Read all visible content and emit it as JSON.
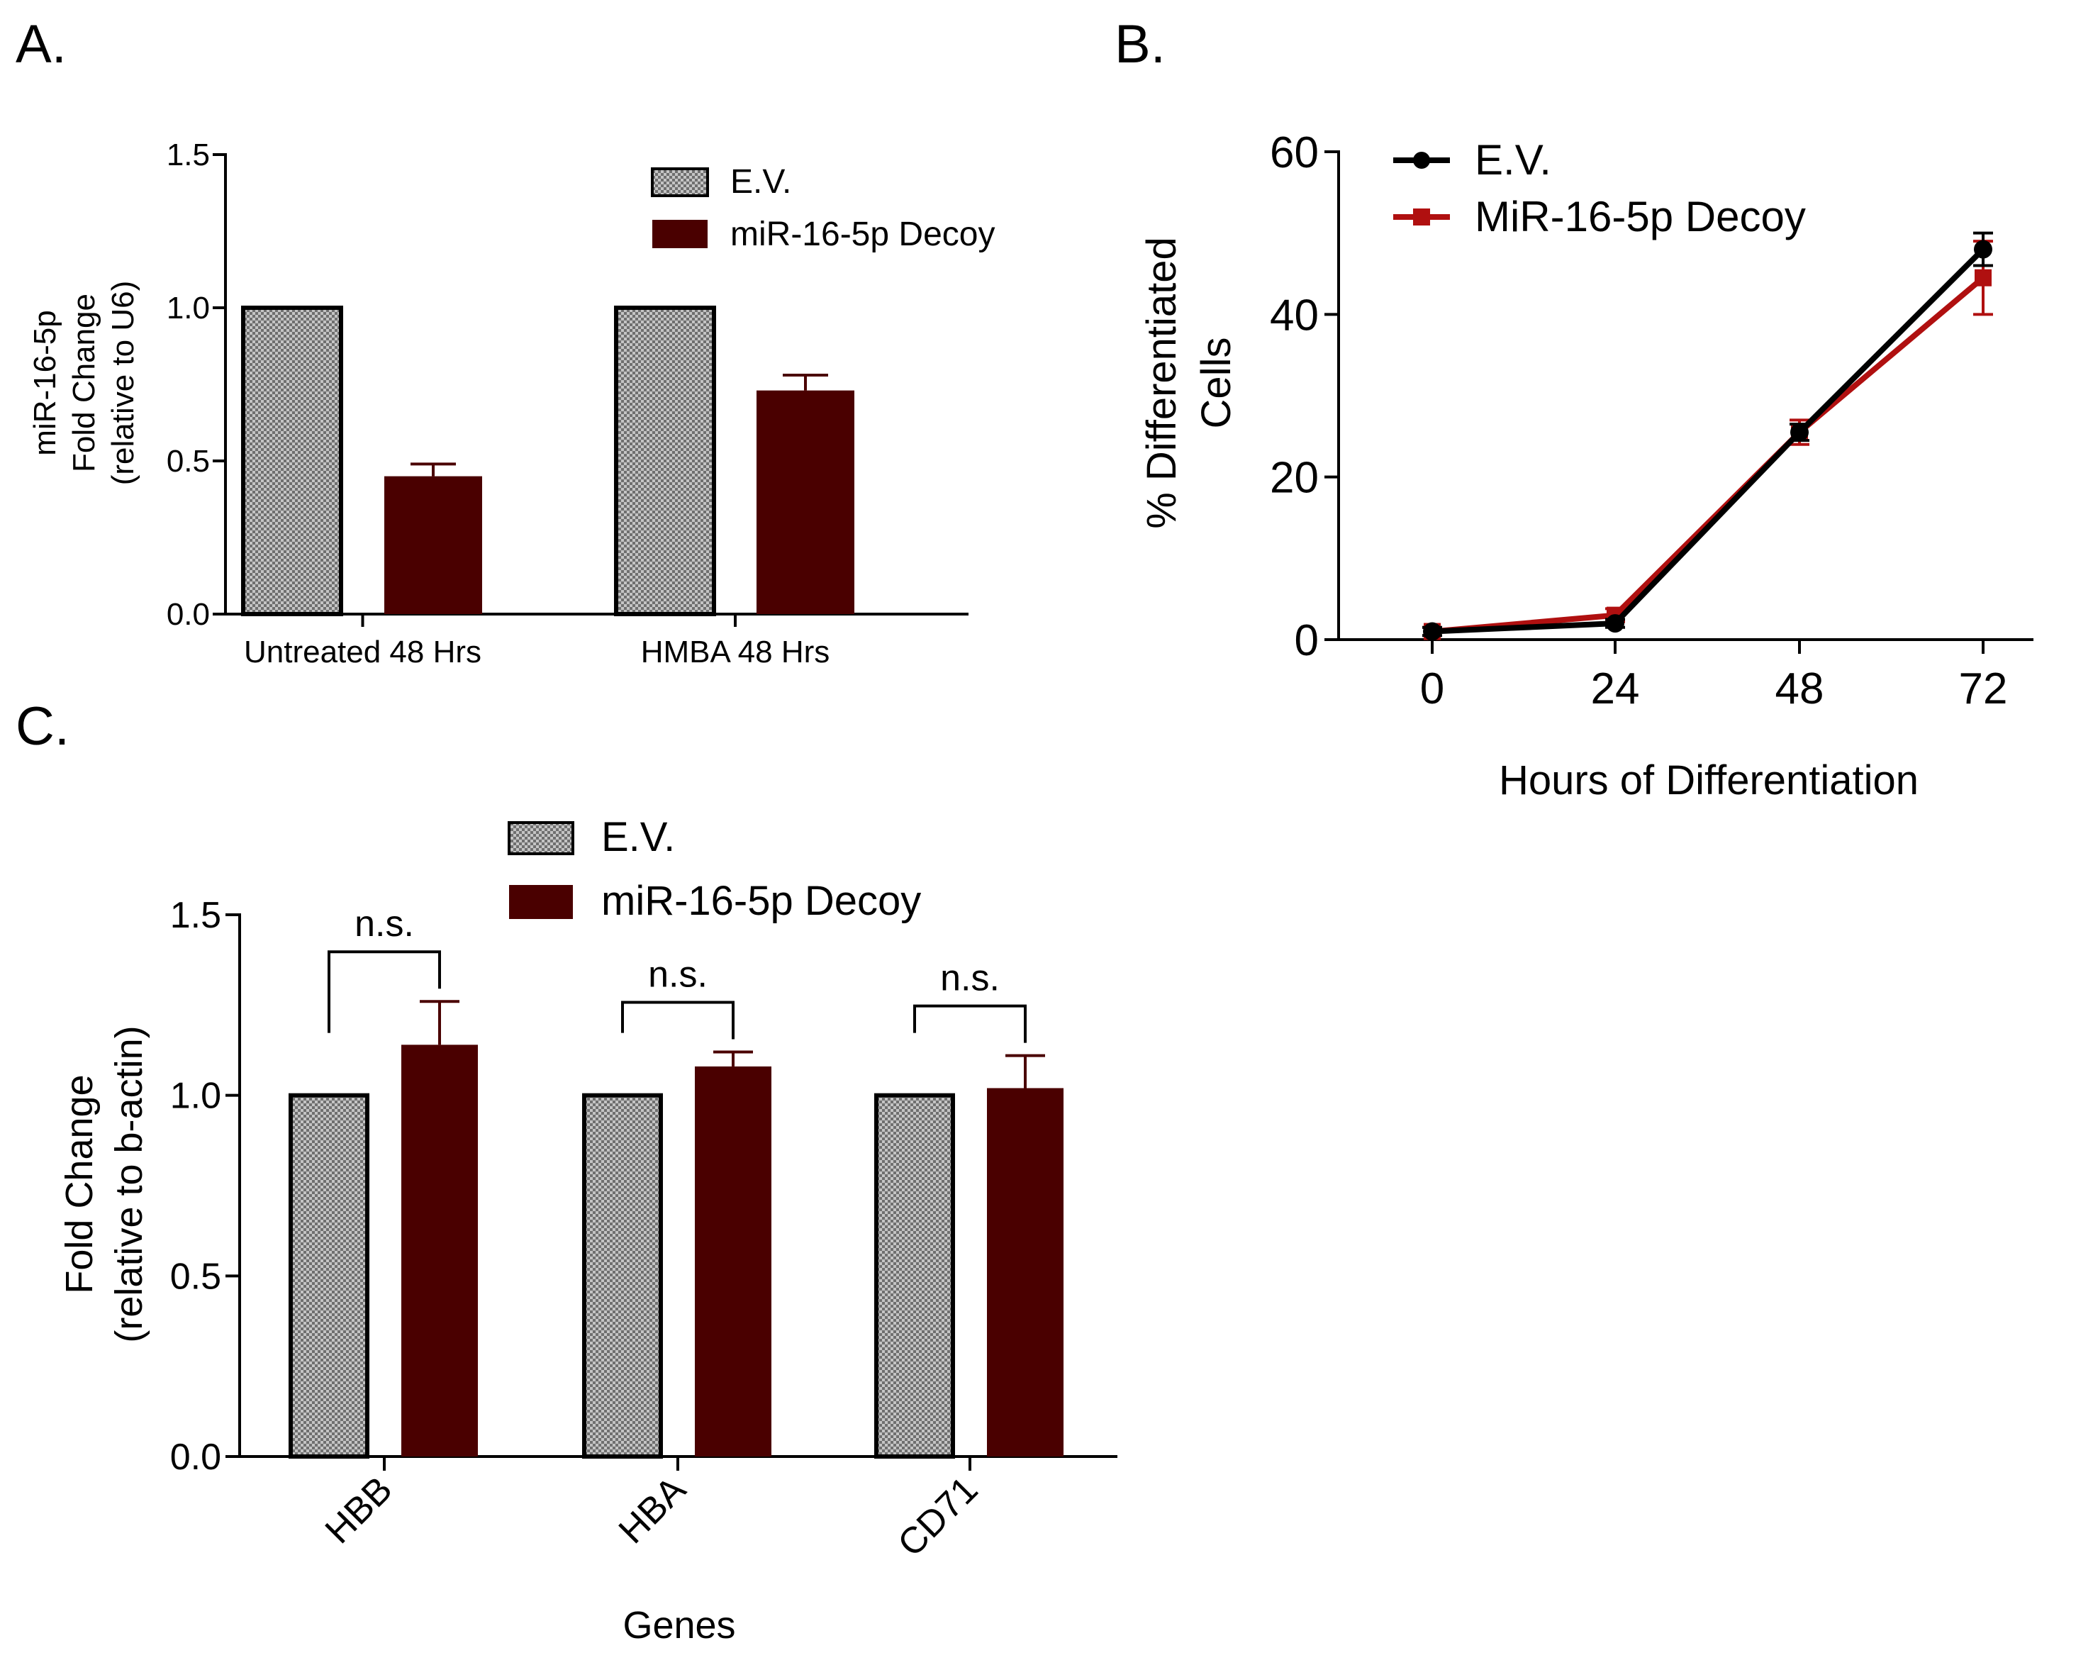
{
  "colors": {
    "ev": "#9a9a9a",
    "decoy_bar": "#4a0000",
    "decoy_line": "#b01010",
    "axis": "#000000"
  },
  "chart_data": [
    {
      "panel": "A.",
      "type": "bar",
      "ylabel_lines": [
        "miR-16-5p",
        "Fold Change",
        "(relative to U6)"
      ],
      "categories": [
        "Untreated 48 Hrs",
        "HMBA 48 Hrs"
      ],
      "ylim": [
        0,
        1.5
      ],
      "yticks": [
        "0.0",
        "0.5",
        "1.0",
        "1.5"
      ],
      "series": [
        {
          "name": "E.V.",
          "values": [
            1.0,
            1.0
          ],
          "errors": [
            0,
            0
          ]
        },
        {
          "name": "miR-16-5p Decoy",
          "values": [
            0.45,
            0.73
          ],
          "errors": [
            0.04,
            0.05
          ]
        }
      ]
    },
    {
      "panel": "B.",
      "type": "line",
      "ylabel_lines": [
        "% Differentiated",
        "Cells"
      ],
      "xlabel": "Hours of Differentiation",
      "x": [
        0,
        24,
        48,
        72
      ],
      "xticks": [
        "0",
        "24",
        "48",
        "72"
      ],
      "ylim": [
        0,
        60
      ],
      "yticks": [
        "0",
        "20",
        "40",
        "60"
      ],
      "series": [
        {
          "name": "E.V.",
          "values": [
            1,
            2,
            25.5,
            48
          ],
          "errors": [
            0.5,
            0.5,
            1,
            2
          ]
        },
        {
          "name": "MiR-16-5p Decoy",
          "values": [
            1,
            3,
            25.5,
            44.5
          ],
          "errors": [
            0.5,
            0.8,
            1.5,
            4.5
          ]
        }
      ]
    },
    {
      "panel": "C.",
      "type": "bar",
      "ylabel_lines": [
        "Fold Change",
        "(relative to b-actin)"
      ],
      "xlabel": "Genes",
      "categories": [
        "HBB",
        "HBA",
        "CD71"
      ],
      "ylim": [
        0,
        1.5
      ],
      "yticks": [
        "0.0",
        "0.5",
        "1.0",
        "1.5"
      ],
      "annotations": [
        "n.s.",
        "n.s.",
        "n.s."
      ],
      "series": [
        {
          "name": "E.V.",
          "values": [
            1.0,
            1.0,
            1.0
          ],
          "errors": [
            0,
            0,
            0
          ]
        },
        {
          "name": "miR-16-5p Decoy",
          "values": [
            1.14,
            1.08,
            1.02
          ],
          "errors": [
            0.12,
            0.04,
            0.09
          ]
        }
      ]
    }
  ]
}
